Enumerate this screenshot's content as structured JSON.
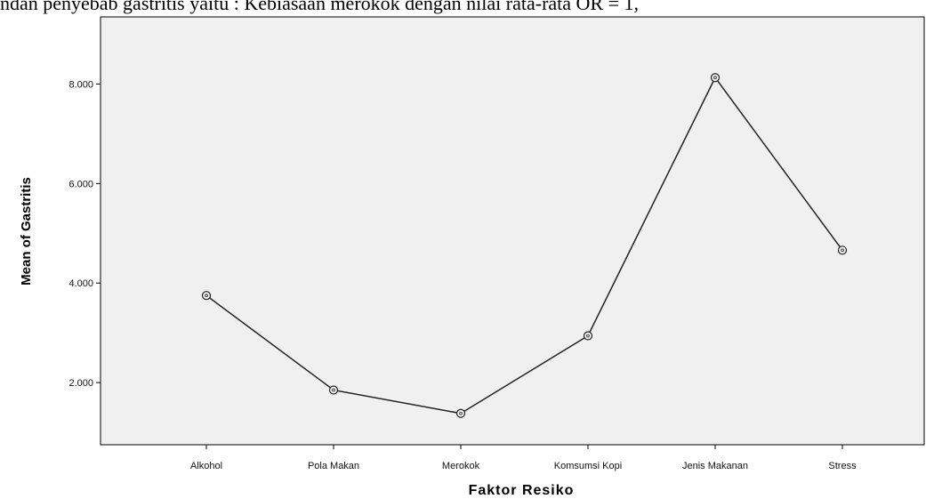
{
  "header_text": "ndan penyebab gastritis yaitu : Kebiasaan merokok dengan nilai rata-rata OR = 1,",
  "chart_data": {
    "type": "line",
    "title": "",
    "xlabel": "Faktor Resiko",
    "ylabel": "Mean of Gastritis",
    "categories": [
      "Alkohol",
      "Pola Makan",
      "Merokok",
      "Komsumsi Kopi",
      "Jenis Makanan",
      "Stress"
    ],
    "series": [
      {
        "values": [
          3.75,
          1.85,
          1.38,
          2.94,
          8.13,
          4.66
        ]
      }
    ],
    "ylim": [
      0.75,
      9.35
    ],
    "yticks": [
      2,
      4,
      6,
      8
    ],
    "ytick_labels": [
      "2.000",
      "4.000",
      "6.000",
      "8.000"
    ],
    "grid": false,
    "plot_background": "#f0f0f0",
    "line_color": "#222222",
    "marker": "open-circle"
  }
}
